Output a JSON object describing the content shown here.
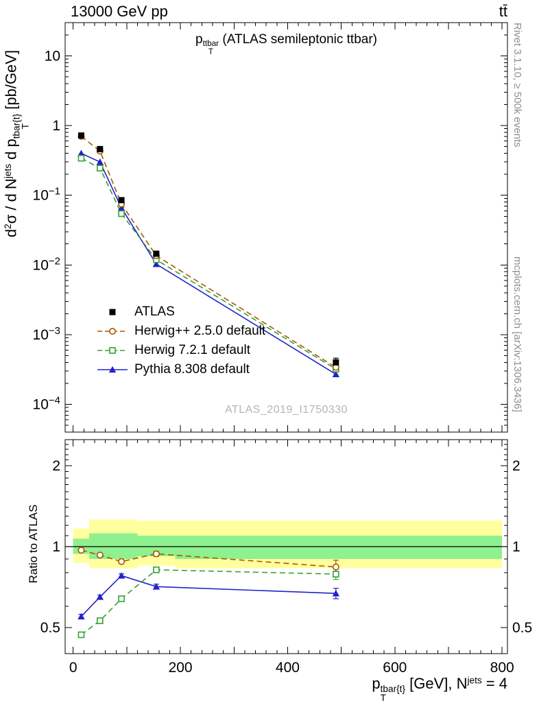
{
  "header": {
    "left": "13000 GeV pp",
    "right": "tt̄"
  },
  "side_notes": {
    "top_right": "Rivet 3.1.10, ≥ 500k events",
    "bottom_right": "mcplots.cern.ch [arXiv:1306.3436]"
  },
  "watermark": "ATLAS_2019_I1750330",
  "labels": {
    "title": [
      {
        "t": "p"
      },
      {
        "stack": {
          "sup": "ttbar",
          "sub": "T"
        }
      },
      {
        "t": " (ATLAS semileptonic ttbar)"
      }
    ],
    "ylabel": [
      {
        "t": "d"
      },
      {
        "t": "2",
        "sup": true
      },
      {
        "t": "σ / d N"
      },
      {
        "t": "jets",
        "sup": true
      },
      {
        "t": " d p"
      },
      {
        "stack": {
          "sup": "tbar{t}",
          "sub": "T"
        }
      },
      {
        "t": " [pb/GeV]"
      }
    ],
    "xlabel": [
      {
        "t": "p"
      },
      {
        "stack": {
          "sup": "tbar{t}",
          "sub": "T"
        }
      },
      {
        "t": " [GeV], N"
      },
      {
        "t": "jets",
        "sup": true
      },
      {
        "t": " = 4"
      }
    ],
    "ratio_ylabel": "Ratio to ATLAS"
  },
  "colors": {
    "frame": "#000000",
    "note_gray": "#8e8e8e",
    "watermark_gray": "#b4b4b4",
    "yellow_band": "#ffff9e",
    "green_band": "#8ef08e"
  },
  "chart_data": {
    "type": "line",
    "panels": [
      "main",
      "ratio"
    ],
    "x_range": [
      -15,
      810
    ],
    "x_ticks_major": [
      0,
      200,
      400,
      600,
      800
    ],
    "x_tick_minor_step": 20,
    "bin_centers": [
      15,
      50,
      90,
      155,
      490
    ],
    "bin_edges": [
      0,
      30,
      70,
      120,
      190,
      800
    ],
    "legend_position": "inside-left",
    "main": {
      "y_scale": "log",
      "y_range": [
        4e-05,
        30
      ],
      "y_label_decades": [
        1,
        0,
        -1,
        -2,
        -3,
        -4
      ],
      "series": [
        {
          "name": "ATLAS",
          "color": "#000000",
          "marker": "square-filled",
          "line": "none",
          "values": [
            0.72,
            0.46,
            0.085,
            0.0145,
            0.0004
          ],
          "errors": [
            0.05,
            0.03,
            0.006,
            0.0012,
            6e-05
          ]
        },
        {
          "name": "Herwig++ 2.5.0 default",
          "color": "#aa5500",
          "marker": "circle-open",
          "line": "dashed",
          "values": [
            0.7,
            0.43,
            0.075,
            0.0136,
            0.00034
          ]
        },
        {
          "name": "Herwig 7.2.1 default",
          "color": "#33a02c",
          "marker": "square-open",
          "line": "dashed",
          "values": [
            0.34,
            0.245,
            0.0545,
            0.0119,
            0.00032
          ]
        },
        {
          "name": "Pythia 8.308 default",
          "color": "#2222cc",
          "marker": "triangle-filled",
          "line": "solid",
          "values": [
            0.4,
            0.3,
            0.066,
            0.0103,
            0.00027
          ]
        }
      ]
    },
    "ratio": {
      "y_scale": "log",
      "y_range": [
        0.4,
        2.5
      ],
      "y_ticks_major": [
        0.5,
        1,
        2
      ],
      "reference": 1.0,
      "bands": {
        "yellow": {
          "color": "#ffff9e",
          "lo": [
            0.87,
            0.83,
            0.83,
            0.85,
            0.83
          ],
          "hi": [
            1.17,
            1.26,
            1.26,
            1.25,
            1.25
          ]
        },
        "green": {
          "color": "#8ef08e",
          "lo": [
            0.94,
            0.9,
            0.9,
            0.92,
            0.9
          ],
          "hi": [
            1.07,
            1.12,
            1.12,
            1.1,
            1.1
          ]
        }
      },
      "series": [
        {
          "name": "Herwig++ 2.5.0 default",
          "values": [
            0.97,
            0.93,
            0.88,
            0.94,
            0.84
          ],
          "errors": [
            0.012,
            0.012,
            0.015,
            0.02,
            0.05
          ]
        },
        {
          "name": "Herwig 7.2.1 default",
          "values": [
            0.47,
            0.53,
            0.64,
            0.82,
            0.79
          ],
          "errors": [
            0.01,
            0.01,
            0.012,
            0.018,
            0.035
          ]
        },
        {
          "name": "Pythia 8.308 default",
          "values": [
            0.55,
            0.65,
            0.78,
            0.71,
            0.67
          ],
          "errors": [
            0.01,
            0.01,
            0.012,
            0.015,
            0.03
          ]
        }
      ]
    }
  }
}
